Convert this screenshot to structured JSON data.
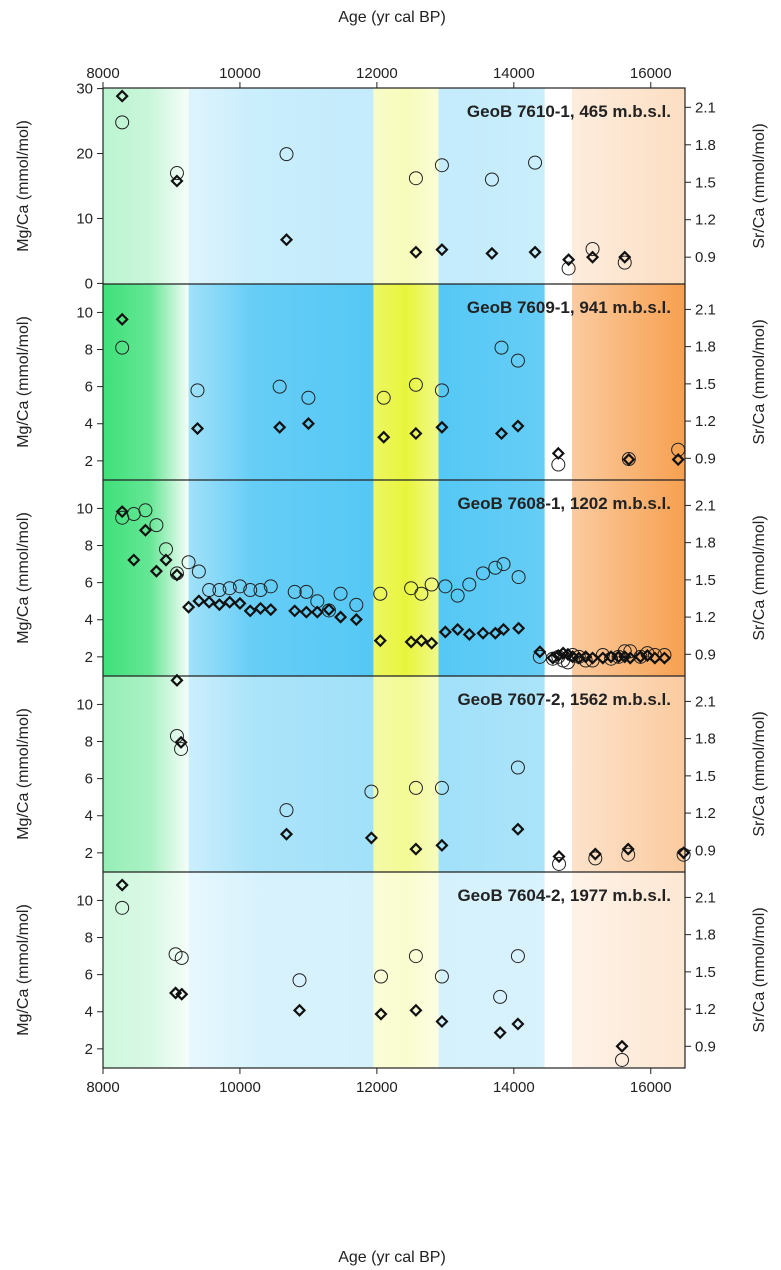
{
  "figure": {
    "x_axis_label": "Age (yr cal BP)",
    "left_axis_label": "Mg/Ca (mmol/mol)",
    "right_axis_label": "Sr/Ca (mmol/mol)",
    "x_ticks": [
      8000,
      10000,
      12000,
      14000,
      16000
    ],
    "xlim": [
      8000,
      16500
    ],
    "background_bands": [
      {
        "from": 8000,
        "to": 9250,
        "color": "#3fe07a"
      },
      {
        "from": 9250,
        "to": 11950,
        "color": "#55c8f5"
      },
      {
        "from": 11950,
        "to": 12900,
        "color": "#e8f53c"
      },
      {
        "from": 12900,
        "to": 14450,
        "color": "#55c8f5"
      },
      {
        "from": 14450,
        "to": 14850,
        "color": "#ffffff"
      },
      {
        "from": 14850,
        "to": 16500,
        "color": "#f7a050"
      }
    ],
    "band_intensity_by_panel": [
      0.35,
      1.0,
      1.0,
      0.55,
      0.25
    ]
  },
  "chart_data": [
    {
      "type": "scatter",
      "title": "GeoB 7610-1, 465 m.b.s.l.",
      "left_ylim": [
        0,
        30
      ],
      "left_ticks": [
        0,
        10,
        20,
        30
      ],
      "right_ylim": [
        0.69,
        2.25
      ],
      "right_ticks": [
        0.9,
        1.2,
        1.5,
        1.8,
        2.1
      ],
      "series": [
        {
          "name": "Mg/Ca",
          "axis": "left",
          "marker": "circle",
          "points": [
            [
              8280,
              24.8
            ],
            [
              9080,
              17.0
            ],
            [
              10680,
              19.9
            ],
            [
              12570,
              16.2
            ],
            [
              12950,
              18.2
            ],
            [
              13680,
              16.0
            ],
            [
              14310,
              18.6
            ],
            [
              14800,
              2.3
            ],
            [
              15150,
              5.3
            ],
            [
              15620,
              3.2
            ]
          ]
        },
        {
          "name": "Sr/Ca",
          "axis": "right",
          "marker": "diamond",
          "points": [
            [
              8280,
              2.19
            ],
            [
              9080,
              1.51
            ],
            [
              10680,
              1.04
            ],
            [
              12570,
              0.94
            ],
            [
              12950,
              0.96
            ],
            [
              13680,
              0.93
            ],
            [
              14310,
              0.94
            ],
            [
              14800,
              0.88
            ],
            [
              15150,
              0.9
            ],
            [
              15620,
              0.9
            ]
          ]
        }
      ]
    },
    {
      "type": "scatter",
      "title": "GeoB 7609-1, 941 m.b.s.l.",
      "left_ylim": [
        1,
        11.5
      ],
      "left_ticks": [
        2,
        4,
        6,
        8,
        10
      ],
      "right_ylim": [
        0.73,
        2.3
      ],
      "right_ticks": [
        0.9,
        1.2,
        1.5,
        1.8,
        2.1
      ],
      "series": [
        {
          "name": "Mg/Ca",
          "axis": "left",
          "marker": "circle",
          "points": [
            [
              8280,
              8.1
            ],
            [
              9380,
              5.8
            ],
            [
              10580,
              6.0
            ],
            [
              11000,
              5.4
            ],
            [
              12100,
              5.4
            ],
            [
              12570,
              6.1
            ],
            [
              12950,
              5.8
            ],
            [
              13820,
              8.1
            ],
            [
              14060,
              7.4
            ],
            [
              14650,
              1.8
            ],
            [
              15680,
              2.1
            ],
            [
              16400,
              2.6
            ]
          ]
        },
        {
          "name": "Sr/Ca",
          "axis": "right",
          "marker": "diamond",
          "points": [
            [
              8280,
              2.02
            ],
            [
              9380,
              1.14
            ],
            [
              10580,
              1.15
            ],
            [
              11000,
              1.18
            ],
            [
              12100,
              1.07
            ],
            [
              12570,
              1.1
            ],
            [
              12950,
              1.15
            ],
            [
              13820,
              1.1
            ],
            [
              14060,
              1.16
            ],
            [
              14650,
              0.94
            ],
            [
              15680,
              0.89
            ],
            [
              16400,
              0.89
            ]
          ]
        }
      ]
    },
    {
      "type": "scatter",
      "title": "GeoB 7608-1, 1202 m.b.s.l.",
      "left_ylim": [
        1,
        11.5
      ],
      "left_ticks": [
        2,
        4,
        6,
        8,
        10
      ],
      "right_ylim": [
        0.73,
        2.3
      ],
      "right_ticks": [
        0.9,
        1.2,
        1.5,
        1.8,
        2.1
      ],
      "series": [
        {
          "name": "Mg/Ca",
          "axis": "left",
          "marker": "circle",
          "points": [
            [
              8280,
              9.5
            ],
            [
              8450,
              9.7
            ],
            [
              8620,
              9.9
            ],
            [
              8780,
              9.1
            ],
            [
              8920,
              7.8
            ],
            [
              9080,
              6.5
            ],
            [
              9250,
              7.1
            ],
            [
              9400,
              6.6
            ],
            [
              9550,
              5.6
            ],
            [
              9700,
              5.6
            ],
            [
              9850,
              5.7
            ],
            [
              10000,
              5.8
            ],
            [
              10150,
              5.6
            ],
            [
              10300,
              5.6
            ],
            [
              10450,
              5.8
            ],
            [
              10800,
              5.5
            ],
            [
              10970,
              5.5
            ],
            [
              11130,
              5.0
            ],
            [
              11300,
              4.5
            ],
            [
              11470,
              5.4
            ],
            [
              11700,
              4.8
            ],
            [
              12050,
              5.4
            ],
            [
              12500,
              5.7
            ],
            [
              12650,
              5.4
            ],
            [
              12800,
              5.9
            ],
            [
              13000,
              5.8
            ],
            [
              13180,
              5.3
            ],
            [
              13350,
              5.9
            ],
            [
              13550,
              6.5
            ],
            [
              13730,
              6.8
            ],
            [
              13850,
              7.0
            ],
            [
              14070,
              6.3
            ],
            [
              14380,
              2.0
            ],
            [
              14570,
              1.9
            ],
            [
              14650,
              2.0
            ],
            [
              14720,
              1.8
            ],
            [
              14790,
              1.7
            ],
            [
              14860,
              2.1
            ],
            [
              14950,
              2.0
            ],
            [
              15050,
              1.8
            ],
            [
              15150,
              1.8
            ],
            [
              15300,
              2.1
            ],
            [
              15420,
              1.9
            ],
            [
              15530,
              2.0
            ],
            [
              15620,
              2.3
            ],
            [
              15700,
              2.3
            ],
            [
              15850,
              2.0
            ],
            [
              15950,
              2.2
            ],
            [
              16060,
              2.1
            ],
            [
              16200,
              2.1
            ]
          ]
        },
        {
          "name": "Sr/Ca",
          "axis": "right",
          "marker": "diamond",
          "points": [
            [
              8280,
              2.05
            ],
            [
              8450,
              1.66
            ],
            [
              8620,
              1.9
            ],
            [
              8780,
              1.57
            ],
            [
              8920,
              1.66
            ],
            [
              9080,
              1.54
            ],
            [
              9250,
              1.28
            ],
            [
              9400,
              1.33
            ],
            [
              9550,
              1.32
            ],
            [
              9700,
              1.3
            ],
            [
              9850,
              1.32
            ],
            [
              10000,
              1.31
            ],
            [
              10150,
              1.25
            ],
            [
              10300,
              1.27
            ],
            [
              10450,
              1.26
            ],
            [
              10800,
              1.25
            ],
            [
              10970,
              1.24
            ],
            [
              11130,
              1.24
            ],
            [
              11300,
              1.26
            ],
            [
              11470,
              1.2
            ],
            [
              11700,
              1.18
            ],
            [
              12050,
              1.01
            ],
            [
              12500,
              1.0
            ],
            [
              12650,
              1.01
            ],
            [
              12800,
              0.99
            ],
            [
              13000,
              1.08
            ],
            [
              13180,
              1.1
            ],
            [
              13350,
              1.06
            ],
            [
              13550,
              1.07
            ],
            [
              13730,
              1.07
            ],
            [
              13850,
              1.1
            ],
            [
              14070,
              1.11
            ],
            [
              14380,
              0.92
            ],
            [
              14570,
              0.87
            ],
            [
              14650,
              0.89
            ],
            [
              14720,
              0.91
            ],
            [
              14790,
              0.9
            ],
            [
              14860,
              0.88
            ],
            [
              14950,
              0.87
            ],
            [
              15050,
              0.88
            ],
            [
              15150,
              0.87
            ],
            [
              15300,
              0.87
            ],
            [
              15420,
              0.88
            ],
            [
              15530,
              0.88
            ],
            [
              15620,
              0.88
            ],
            [
              15700,
              0.87
            ],
            [
              15850,
              0.88
            ],
            [
              15950,
              0.89
            ],
            [
              16060,
              0.87
            ],
            [
              16200,
              0.87
            ]
          ]
        }
      ]
    },
    {
      "type": "scatter",
      "title": "GeoB 7607-2, 1562 m.b.s.l.",
      "left_ylim": [
        1,
        11.5
      ],
      "left_ticks": [
        2,
        4,
        6,
        8,
        10
      ],
      "right_ylim": [
        0.73,
        2.3
      ],
      "right_ticks": [
        0.9,
        1.2,
        1.5,
        1.8,
        2.1
      ],
      "series": [
        {
          "name": "Mg/Ca",
          "axis": "left",
          "marker": "circle",
          "points": [
            [
              9080,
              8.3
            ],
            [
              9140,
              7.6
            ],
            [
              10680,
              4.3
            ],
            [
              11920,
              5.3
            ],
            [
              12570,
              5.5
            ],
            [
              12950,
              5.5
            ],
            [
              14060,
              6.6
            ],
            [
              14660,
              1.4
            ],
            [
              15190,
              1.7
            ],
            [
              15670,
              1.9
            ],
            [
              16480,
              1.9
            ]
          ]
        },
        {
          "name": "Sr/Ca",
          "axis": "right",
          "marker": "diamond",
          "points": [
            [
              9080,
              2.27
            ],
            [
              9140,
              1.77
            ],
            [
              10680,
              1.03
            ],
            [
              11920,
              1.0
            ],
            [
              12570,
              0.91
            ],
            [
              12950,
              0.94
            ],
            [
              14060,
              1.07
            ],
            [
              14660,
              0.85
            ],
            [
              15190,
              0.87
            ],
            [
              15670,
              0.91
            ],
            [
              16480,
              0.88
            ]
          ]
        }
      ]
    },
    {
      "type": "scatter",
      "title": "GeoB 7604-2, 1977 m.b.s.l.",
      "left_ylim": [
        1,
        11.5
      ],
      "left_ticks": [
        2,
        4,
        6,
        8,
        10
      ],
      "right_ylim": [
        0.73,
        2.3
      ],
      "right_ticks": [
        0.9,
        1.2,
        1.5,
        1.8,
        2.1
      ],
      "series": [
        {
          "name": "Mg/Ca",
          "axis": "left",
          "marker": "circle",
          "points": [
            [
              8280,
              9.6
            ],
            [
              9060,
              7.1
            ],
            [
              9150,
              6.9
            ],
            [
              10870,
              5.7
            ],
            [
              12060,
              5.9
            ],
            [
              12570,
              7.0
            ],
            [
              12950,
              5.9
            ],
            [
              13800,
              4.8
            ],
            [
              14060,
              7.0
            ],
            [
              15580,
              1.4
            ]
          ]
        },
        {
          "name": "Sr/Ca",
          "axis": "right",
          "marker": "diamond",
          "points": [
            [
              8280,
              2.2
            ],
            [
              9060,
              1.33
            ],
            [
              9150,
              1.32
            ],
            [
              10870,
              1.19
            ],
            [
              12060,
              1.16
            ],
            [
              12570,
              1.19
            ],
            [
              12950,
              1.1
            ],
            [
              13800,
              1.01
            ],
            [
              14060,
              1.08
            ],
            [
              15580,
              0.9
            ]
          ]
        }
      ]
    }
  ]
}
